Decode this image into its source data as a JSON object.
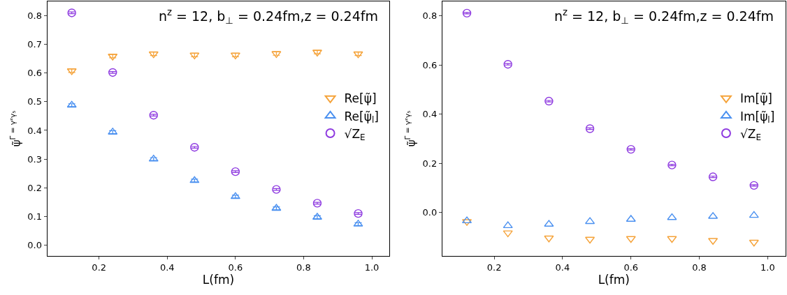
{
  "chart_data": [
    {
      "type": "scatter",
      "xlabel": "L(fm)",
      "ylabel": "ψ̃$^{Γ = γᶻγ₅}$",
      "annotations": [
        "n$^{z}$ = 12, b$_{⊥}$ = 0.24fm,z = 0.24fm"
      ],
      "x": [
        0.12,
        0.24,
        0.36,
        0.48,
        0.6,
        0.72,
        0.84,
        0.96
      ],
      "xlim": [
        0.048,
        1.052
      ],
      "xticks": [
        0.2,
        0.4,
        0.6,
        0.8,
        {
          "value": 1,
          "label": "1.0"
        }
      ],
      "ylim": [
        -0.038,
        0.85
      ],
      "yticks": [
        {
          "value": 0,
          "label": "0.0"
        },
        0.1,
        0.2,
        0.3,
        0.4,
        0.5,
        0.6,
        0.7,
        0.8
      ],
      "grid": false,
      "legend": "right",
      "series": [
        {
          "name": "Re[ψ̃]",
          "color": "#f5a33a",
          "marker": "triangle-down",
          "values": [
            0.608,
            0.659,
            0.667,
            0.663,
            0.663,
            0.668,
            0.673,
            0.667
          ],
          "errors": [
            0.006,
            0.006,
            0.006,
            0.006,
            0.006,
            0.006,
            0.006,
            0.006
          ]
        },
        {
          "name": "Re[ψ̃$_{l}$]",
          "color": "#4a90f0",
          "marker": "triangle",
          "values": [
            0.488,
            0.394,
            0.3,
            0.225,
            0.169,
            0.128,
            0.097,
            0.073
          ],
          "errors": [
            0.005,
            0.005,
            0.005,
            0.005,
            0.005,
            0.005,
            0.005,
            0.005
          ]
        },
        {
          "name": "√Z$_{E}$",
          "color": "#8e3ae0",
          "marker": "circle",
          "values": [
            0.81,
            0.602,
            0.453,
            0.341,
            0.256,
            0.194,
            0.146,
            0.11
          ],
          "errors": [
            0.003,
            0.003,
            0.003,
            0.003,
            0.003,
            0.003,
            0.003,
            0.003
          ]
        }
      ]
    },
    {
      "type": "scatter",
      "xlabel": "L(fm)",
      "ylabel": "ψ̃$^{Γ = γᶻγ₅}$",
      "annotations": [
        "n$^{z}$ = 12, b$_{⊥}$ = 0.24fm,z = 0.24fm"
      ],
      "x": [
        0.12,
        0.24,
        0.36,
        0.48,
        0.6,
        0.72,
        0.84,
        0.96
      ],
      "xlim": [
        0.048,
        1.052
      ],
      "xticks": [
        0.2,
        0.4,
        0.6,
        0.8,
        {
          "value": 1,
          "label": "1.0"
        }
      ],
      "ylim": [
        -0.177,
        0.859
      ],
      "yticks": [
        {
          "value": 0,
          "label": "0.0"
        },
        0.2,
        0.4,
        0.6,
        0.8
      ],
      "grid": false,
      "legend": "right",
      "series": [
        {
          "name": "Im[ψ̃]",
          "color": "#f5a33a",
          "marker": "triangle-down",
          "values": [
            -0.037,
            -0.083,
            -0.104,
            -0.109,
            -0.106,
            -0.106,
            -0.114,
            -0.121
          ]
        },
        {
          "name": "Im[ψ̃$_{l}$]",
          "color": "#4a90f0",
          "marker": "triangle",
          "values": [
            -0.034,
            -0.054,
            -0.048,
            -0.037,
            -0.028,
            -0.021,
            -0.016,
            -0.012
          ]
        },
        {
          "name": "√Z$_{E}$",
          "color": "#8e3ae0",
          "marker": "circle",
          "values": [
            0.811,
            0.603,
            0.453,
            0.341,
            0.257,
            0.193,
            0.145,
            0.11
          ],
          "errors": [
            0.003,
            0.003,
            0.003,
            0.003,
            0.003,
            0.003,
            0.003,
            0.003
          ]
        }
      ]
    }
  ]
}
